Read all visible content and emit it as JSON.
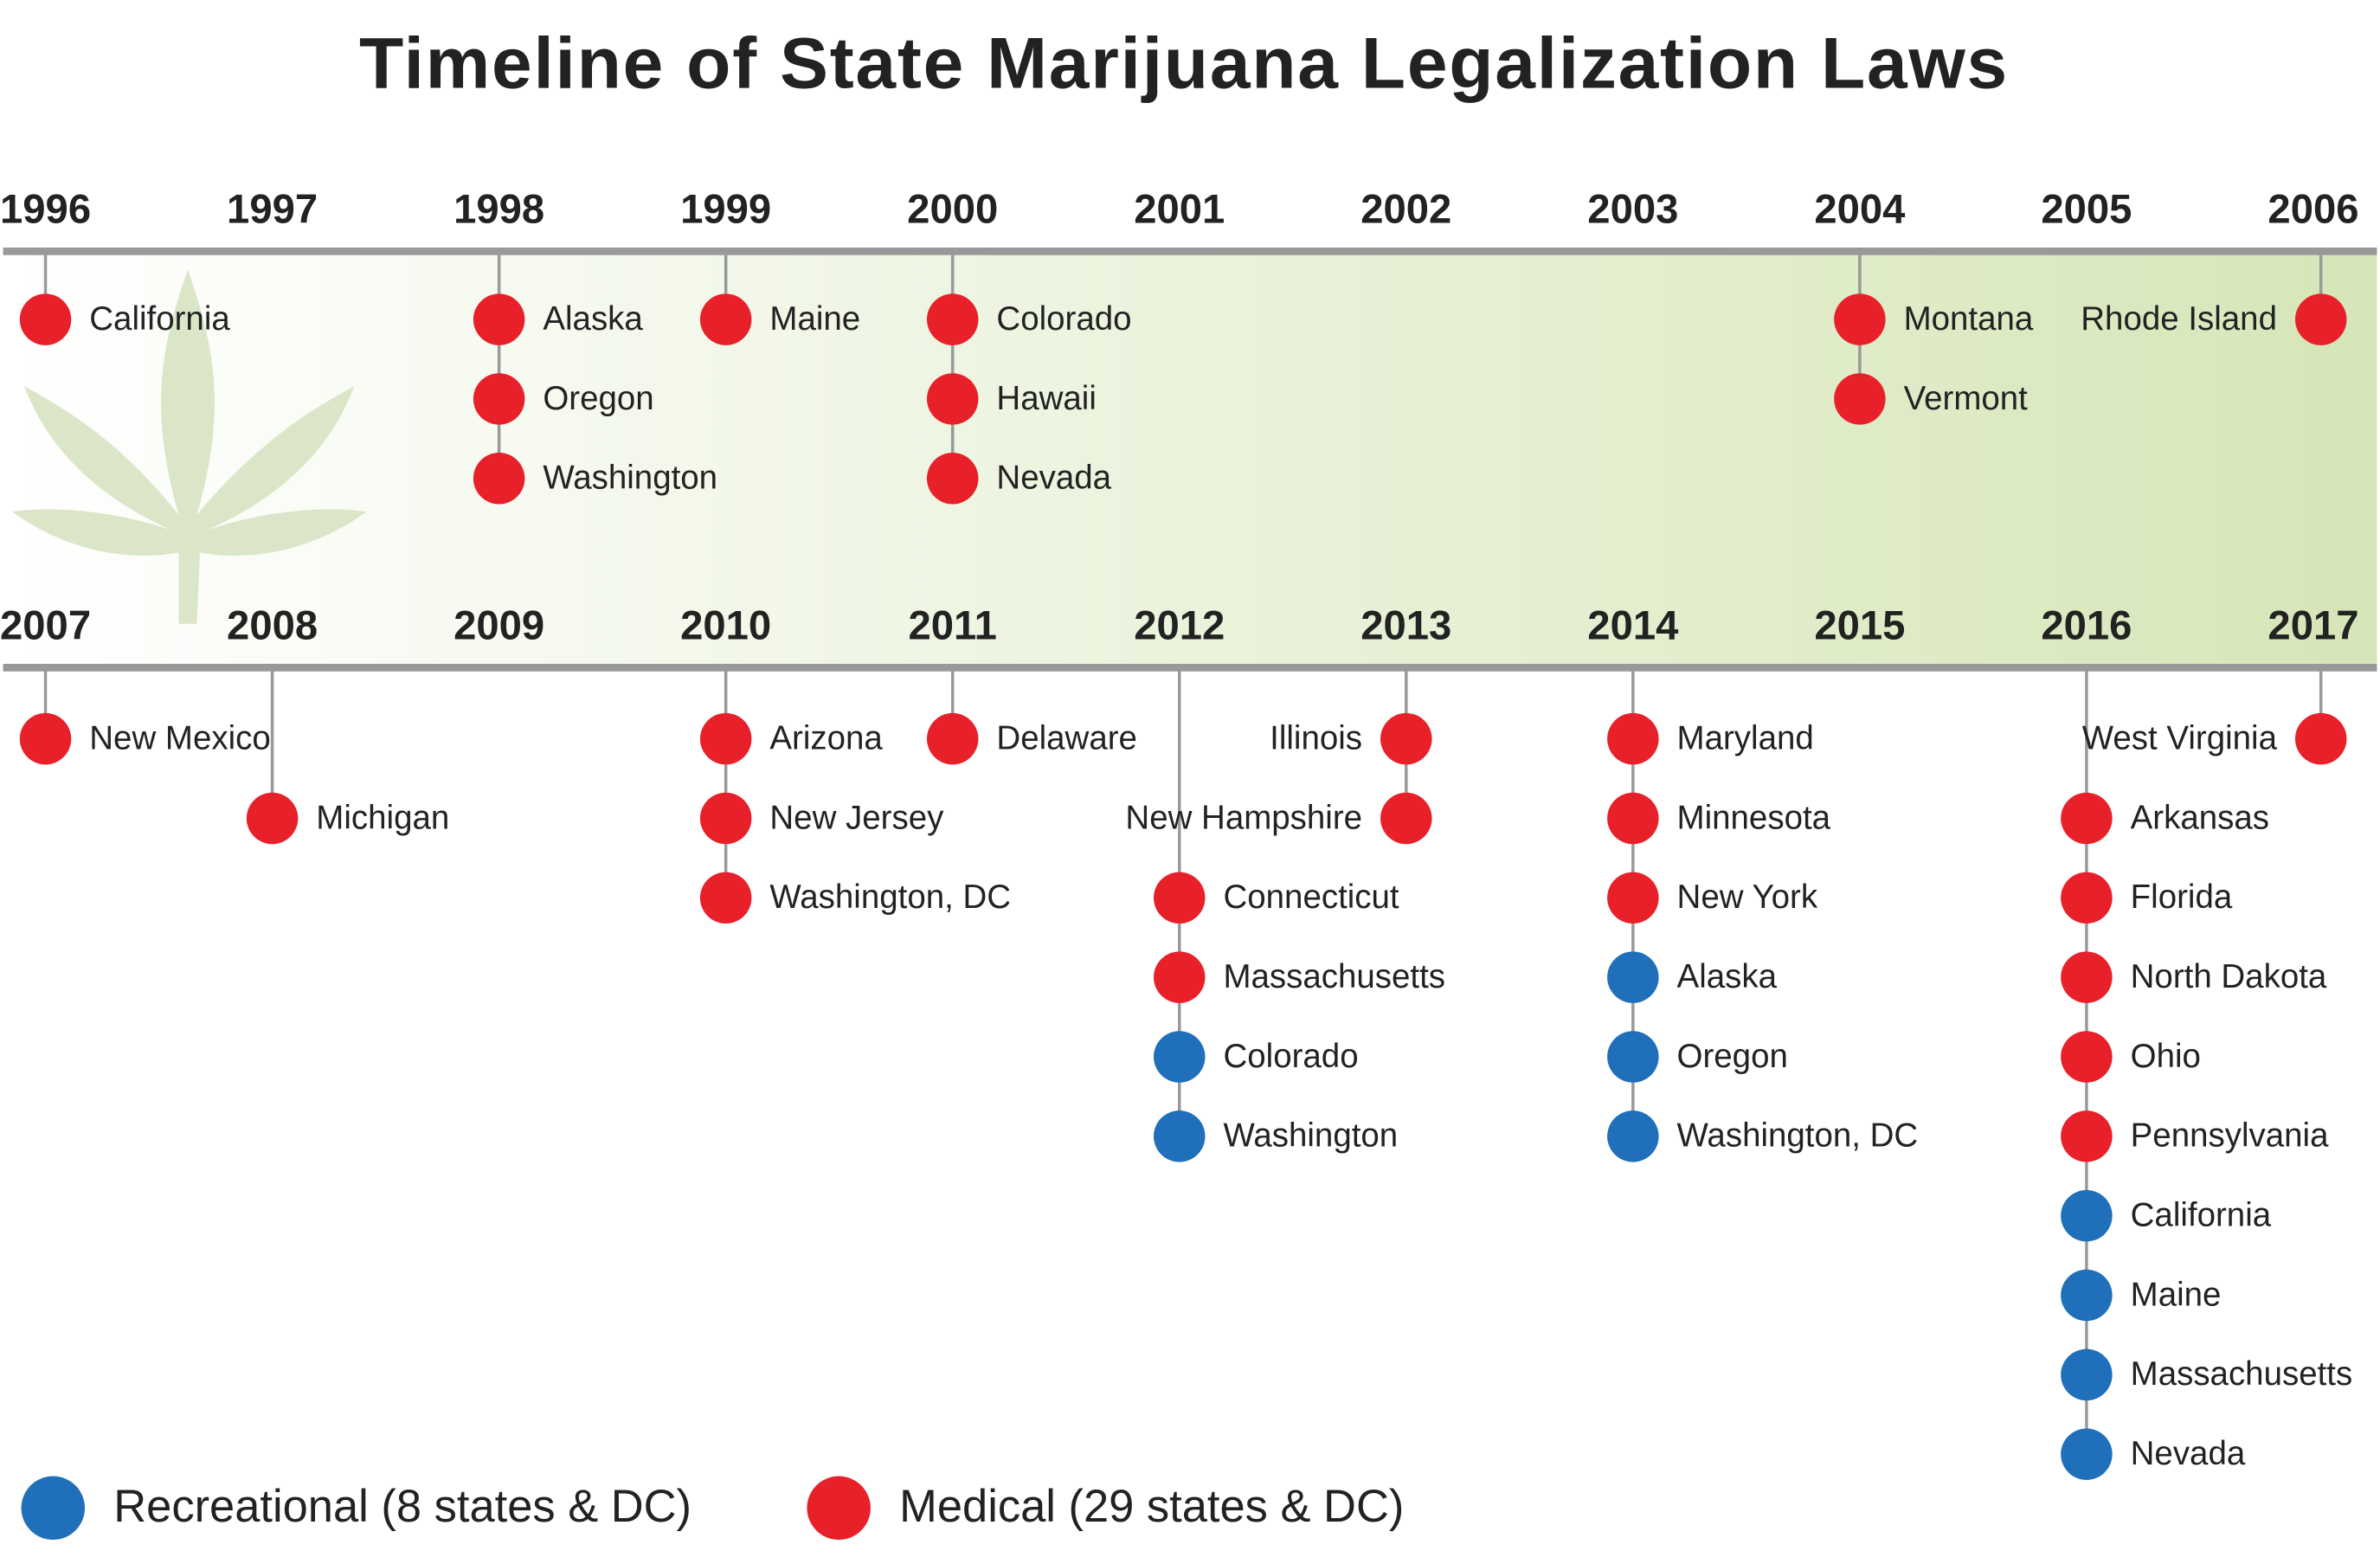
{
  "title": "Timeline of State Marijuana Legalization Laws",
  "types": {
    "medical": "#e8202a",
    "recreational": "#1f6fba"
  },
  "timelines": [
    {
      "years": [
        {
          "year": "1996",
          "states": [
            {
              "name": "California",
              "type": "medical"
            }
          ]
        },
        {
          "year": "1997",
          "states": []
        },
        {
          "year": "1998",
          "states": [
            {
              "name": "Alaska",
              "type": "medical"
            },
            {
              "name": "Oregon",
              "type": "medical"
            },
            {
              "name": "Washington",
              "type": "medical"
            }
          ]
        },
        {
          "year": "1999",
          "states": [
            {
              "name": "Maine",
              "type": "medical"
            }
          ]
        },
        {
          "year": "2000",
          "states": [
            {
              "name": "Colorado",
              "type": "medical"
            },
            {
              "name": "Hawaii",
              "type": "medical"
            },
            {
              "name": "Nevada",
              "type": "medical"
            }
          ]
        },
        {
          "year": "2001",
          "states": []
        },
        {
          "year": "2002",
          "states": []
        },
        {
          "year": "2003",
          "states": []
        },
        {
          "year": "2004",
          "states": [
            {
              "name": "Montana",
              "type": "medical"
            },
            {
              "name": "Vermont",
              "type": "medical"
            }
          ]
        },
        {
          "year": "2005",
          "states": []
        },
        {
          "year": "2006",
          "states": [
            {
              "name": "Rhode Island",
              "type": "medical"
            }
          ]
        }
      ]
    },
    {
      "years": [
        {
          "year": "2007",
          "states": [
            {
              "name": "New Mexico",
              "type": "medical"
            }
          ]
        },
        {
          "year": "2008",
          "states": [
            {
              "name": "Michigan",
              "type": "medical"
            }
          ]
        },
        {
          "year": "2009",
          "states": []
        },
        {
          "year": "2010",
          "states": [
            {
              "name": "Arizona",
              "type": "medical"
            },
            {
              "name": "New Jersey",
              "type": "medical"
            },
            {
              "name": "Washington, DC",
              "type": "medical"
            }
          ]
        },
        {
          "year": "2011",
          "states": [
            {
              "name": "Delaware",
              "type": "medical"
            }
          ]
        },
        {
          "year": "2012",
          "states": [
            {
              "name": "Connecticut",
              "type": "medical"
            },
            {
              "name": "Massachusetts",
              "type": "medical"
            },
            {
              "name": "Colorado",
              "type": "recreational"
            },
            {
              "name": "Washington",
              "type": "recreational"
            }
          ]
        },
        {
          "year": "2013",
          "states": [
            {
              "name": "Illinois",
              "type": "medical"
            },
            {
              "name": "New Hampshire",
              "type": "medical"
            }
          ]
        },
        {
          "year": "2014",
          "states": [
            {
              "name": "Maryland",
              "type": "medical"
            },
            {
              "name": "Minnesota",
              "type": "medical"
            },
            {
              "name": "New York",
              "type": "medical"
            },
            {
              "name": "Alaska",
              "type": "recreational"
            },
            {
              "name": "Oregon",
              "type": "recreational"
            },
            {
              "name": "Washington, DC",
              "type": "recreational"
            }
          ]
        },
        {
          "year": "2015",
          "states": []
        },
        {
          "year": "2016",
          "states": [
            {
              "name": "Arkansas",
              "type": "medical"
            },
            {
              "name": "Florida",
              "type": "medical"
            },
            {
              "name": "North Dakota",
              "type": "medical"
            },
            {
              "name": "Ohio",
              "type": "medical"
            },
            {
              "name": "Pennsylvania",
              "type": "medical"
            },
            {
              "name": "California",
              "type": "recreational"
            },
            {
              "name": "Maine",
              "type": "recreational"
            },
            {
              "name": "Massachusetts",
              "type": "recreational"
            },
            {
              "name": "Nevada",
              "type": "recreational"
            }
          ]
        },
        {
          "year": "2017",
          "states": [
            {
              "name": "West Virginia",
              "type": "medical"
            }
          ]
        }
      ]
    }
  ],
  "legend": [
    {
      "type": "recreational",
      "label": "Recreational (8 states & DC)"
    },
    {
      "type": "medical",
      "label": "Medical (29 states & DC)"
    }
  ]
}
